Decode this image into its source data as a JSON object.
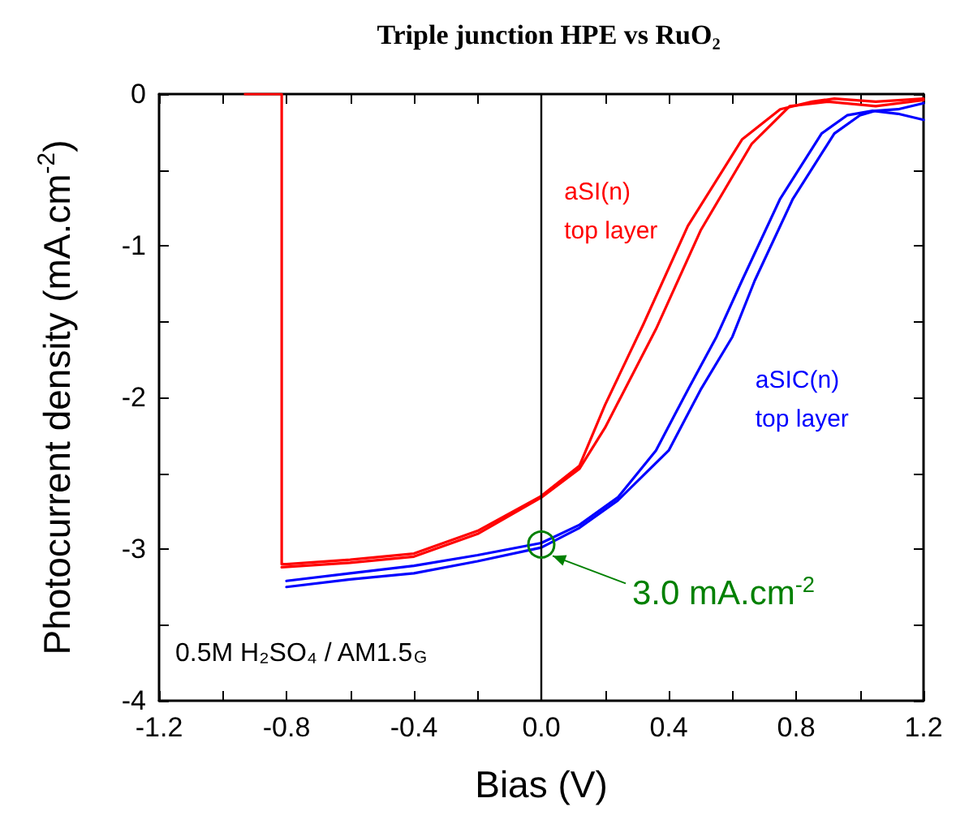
{
  "chart_data": {
    "type": "line",
    "title": "Triple junction HPE vs RuO₂",
    "xlabel": "Bias (V)",
    "ylabel": "Photocurrent density (mA.cm$^{-2}$)",
    "series": [
      {
        "name": "aSI(n)\ntop layer",
        "color": "#ff0000",
        "x": [
          -0.93,
          -0.815,
          -0.815,
          -0.8,
          -0.6,
          -0.4,
          -0.2,
          0,
          0.12,
          0.2,
          0.32,
          0.46,
          0.63,
          0.75,
          0.85,
          0.92,
          1.05,
          1.2
        ],
        "values": [
          0,
          0,
          -3.1,
          -3.1,
          -3.07,
          -3.03,
          -2.88,
          -2.65,
          -2.45,
          -2.05,
          -1.52,
          -0.87,
          -0.3,
          -0.1,
          -0.05,
          -0.03,
          -0.05,
          -0.03
        ]
      },
      {
        "color": "#ff0000",
        "x": [
          -0.815,
          -0.6,
          -0.4,
          -0.2,
          0,
          0.12,
          0.2,
          0.36,
          0.5,
          0.66,
          0.78,
          0.9,
          1.05,
          1.2
        ],
        "values": [
          -3.12,
          -3.09,
          -3.05,
          -2.9,
          -2.66,
          -2.47,
          -2.2,
          -1.55,
          -0.9,
          -0.33,
          -0.08,
          -0.05,
          -0.08,
          -0.04
        ]
      },
      {
        "name": "aSIC(n)\ntop layer",
        "color": "#0000ff",
        "x": [
          -0.8,
          -0.6,
          -0.4,
          -0.2,
          0,
          0.12,
          0.24,
          0.36,
          0.46,
          0.55,
          0.63,
          0.75,
          0.88,
          0.96,
          1.04,
          1.12,
          1.2
        ],
        "values": [
          -3.21,
          -3.16,
          -3.11,
          -3.04,
          -2.96,
          -2.84,
          -2.66,
          -2.35,
          -1.95,
          -1.6,
          -1.23,
          -0.69,
          -0.26,
          -0.14,
          -0.11,
          -0.13,
          -0.17
        ]
      },
      {
        "color": "#0000ff",
        "x": [
          -0.8,
          -0.6,
          -0.4,
          -0.2,
          0,
          0.12,
          0.24,
          0.4,
          0.5,
          0.6,
          0.67,
          0.79,
          0.92,
          1.0,
          1.05,
          1.12,
          1.2
        ],
        "values": [
          -3.25,
          -3.2,
          -3.16,
          -3.08,
          -2.99,
          -2.86,
          -2.68,
          -2.35,
          -1.95,
          -1.6,
          -1.23,
          -0.69,
          -0.26,
          -0.14,
          -0.11,
          -0.1,
          -0.06
        ]
      }
    ],
    "xlim": [
      -1.2,
      1.2
    ],
    "xticks": [
      {
        "value": -1.2,
        "label": "-1.2"
      },
      {
        "value": -1.0,
        "label": null
      },
      {
        "value": -0.8,
        "label": "-0.8"
      },
      {
        "value": -0.6,
        "label": null
      },
      {
        "value": -0.4,
        "label": "-0.4"
      },
      {
        "value": -0.2,
        "label": null
      },
      {
        "value": 0,
        "label": "0.0"
      },
      {
        "value": 0.2,
        "label": null
      },
      {
        "value": 0.4,
        "label": "0.4"
      },
      {
        "value": 0.6,
        "label": null
      },
      {
        "value": 0.8,
        "label": "0.8"
      },
      {
        "value": 1.0,
        "label": null
      },
      {
        "value": 1.2,
        "label": "1.2"
      }
    ],
    "ylim": [
      -4,
      0
    ],
    "yticks": [
      -4,
      {
        "value": -3.5,
        "label": null
      },
      -3,
      {
        "value": -2.5,
        "label": null
      },
      -2,
      {
        "value": -1.5,
        "label": null
      },
      -1,
      {
        "value": -0.5,
        "label": null
      },
      0
    ],
    "ref_lines": [
      {
        "axis": "x",
        "value": 0,
        "color": "#000000"
      }
    ],
    "annotations": [
      {
        "text": "3.0 mA.cm$^{-2}$",
        "x": 0,
        "y": -2.97
      },
      "0.5M H₂SO₄ / AM1.5$_{G}$"
    ],
    "grid": false,
    "legend": false
  }
}
